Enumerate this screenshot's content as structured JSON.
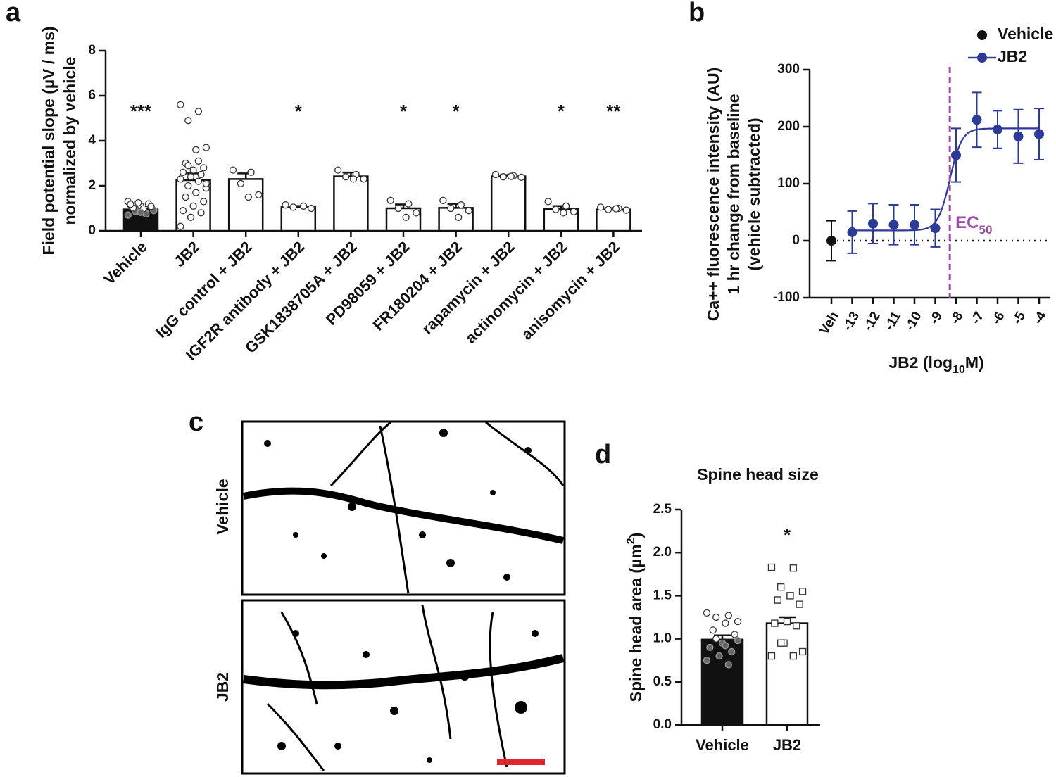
{
  "chart_data": [
    {
      "type": "bar",
      "panel": "a",
      "ylabel": [
        "Field potential slope (µV / ms)",
        "normalized by vehicle"
      ],
      "categories": [
        "Vehicle",
        "JB2",
        "IgG control + JB2",
        "IGF2R antibody + JB2",
        "GSK1838705A + JB2",
        "PD98059 + JB2",
        "FR180204 + JB2",
        "rapamycin + JB2",
        "actinomycin + JB2",
        "anisomycin + JB2"
      ],
      "values": [
        0.95,
        2.25,
        2.3,
        1.05,
        2.42,
        1.0,
        1.02,
        2.42,
        0.97,
        0.95
      ],
      "errors": [
        0.03,
        0.3,
        0.25,
        0.05,
        0.17,
        0.17,
        0.18,
        0.06,
        0.13,
        0.06
      ],
      "colors": [
        "#111111",
        "#ffffff",
        "#ffffff",
        "#ffffff",
        "#ffffff",
        "#ffffff",
        "#ffffff",
        "#ffffff",
        "#ffffff",
        "#ffffff"
      ],
      "annotations": [
        "***",
        null,
        null,
        "*",
        null,
        "*",
        "*",
        null,
        "*",
        "**"
      ],
      "points": [
        [
          0.7,
          0.8,
          0.85,
          0.9,
          0.95,
          1.0,
          1.05,
          1.1,
          1.15,
          1.2,
          1.25,
          1.3,
          0.75,
          0.88,
          0.92,
          0.98,
          1.02,
          1.08,
          0.82,
          1.18
        ],
        [
          5.6,
          5.3,
          4.9,
          3.7,
          3.6,
          3.0,
          2.8,
          2.7,
          2.6,
          2.5,
          2.4,
          2.3,
          2.2,
          2.0,
          1.9,
          1.7,
          1.5,
          1.3,
          1.1,
          0.9,
          0.8,
          0.6,
          0.2,
          3.1,
          2.9,
          2.1
        ],
        [
          2.7,
          2.6,
          2.1,
          1.6,
          1.5
        ],
        [
          1.15,
          1.1,
          1.05,
          1.0
        ],
        [
          2.7,
          2.5,
          2.4,
          2.3,
          2.3
        ],
        [
          1.35,
          1.2,
          1.0,
          0.8,
          0.6
        ],
        [
          1.35,
          1.15,
          1.0,
          0.9,
          0.6
        ],
        [
          2.5,
          2.45,
          2.4,
          2.38,
          2.42
        ],
        [
          1.3,
          1.1,
          0.95,
          0.85,
          0.8
        ],
        [
          1.05,
          1.0,
          0.95,
          0.92,
          0.98
        ]
      ],
      "marker": "circle",
      "ylim": [
        0,
        8
      ],
      "yticks": [
        0,
        2,
        4,
        6,
        8
      ]
    },
    {
      "type": "line",
      "panel": "b",
      "ylabel": [
        "Ca++ fluorescence intensity (AU)",
        "1 hr change from baseline",
        "(vehicle subtracted)"
      ],
      "xlabel": {
        "main": "JB2 (log",
        "sub": "10",
        "tail": "M)"
      },
      "categories": [
        "Veh",
        "-13",
        "-12",
        "-11",
        "-10",
        "-9",
        "-8",
        "-7",
        "-6",
        "-5",
        "-4"
      ],
      "series": [
        {
          "name": "Vehicle",
          "color": "#111111",
          "values": [
            0,
            null,
            null,
            null,
            null,
            null,
            null,
            null,
            null,
            null,
            null
          ],
          "errors": [
            35,
            null,
            null,
            null,
            null,
            null,
            null,
            null,
            null,
            null,
            null
          ]
        },
        {
          "name": "JB2",
          "color": "#2e3a97",
          "values": [
            null,
            15,
            30,
            28,
            28,
            22,
            150,
            212,
            195,
            183,
            187
          ],
          "errors": [
            null,
            37,
            35,
            35,
            35,
            33,
            47,
            48,
            33,
            47,
            45
          ]
        }
      ],
      "fit": {
        "bottom": 18,
        "top": 197,
        "log_ec50": -8.3,
        "hill": 1.5
      },
      "ec50_label": {
        "main": "EC",
        "sub": "50"
      },
      "ec50_color": "#9b4ea8",
      "reference_line": 0,
      "legend": "top-right",
      "ylim": [
        -100,
        300
      ],
      "yticks": [
        -100,
        0,
        100,
        200,
        300
      ]
    },
    {
      "type": "bar",
      "panel": "d",
      "title": "Spine head size",
      "ylabel": {
        "main": "Spine head area (µm",
        "sup": "2",
        "tail": ")"
      },
      "categories": [
        "Vehicle",
        "JB2"
      ],
      "values": [
        0.99,
        1.18
      ],
      "errors": [
        0.05,
        0.07
      ],
      "colors": [
        "#111111",
        "#ffffff"
      ],
      "annotations": [
        null,
        "*"
      ],
      "points": [
        [
          1.3,
          1.27,
          1.25,
          1.2,
          1.18,
          1.1,
          1.05,
          0.95,
          0.9,
          0.85,
          0.8,
          0.75,
          0.7,
          1.0,
          0.98,
          0.92
        ],
        [
          1.83,
          1.82,
          1.6,
          1.55,
          1.5,
          1.45,
          1.4,
          1.2,
          1.18,
          1.15,
          0.95,
          0.8,
          0.8,
          0.95,
          0.85,
          1.5,
          1.45
        ]
      ],
      "markers": [
        "circle",
        "square"
      ],
      "ylim": [
        0,
        2.5
      ],
      "yticks": [
        {
          "value": 0,
          "label": "0.0"
        },
        0.5,
        {
          "value": 1,
          "label": "1.0"
        },
        1.5,
        {
          "value": 2,
          "label": "2.0"
        },
        2.5
      ]
    }
  ],
  "images": {
    "panel": "c",
    "labels": [
      "Vehicle",
      "JB2"
    ]
  }
}
